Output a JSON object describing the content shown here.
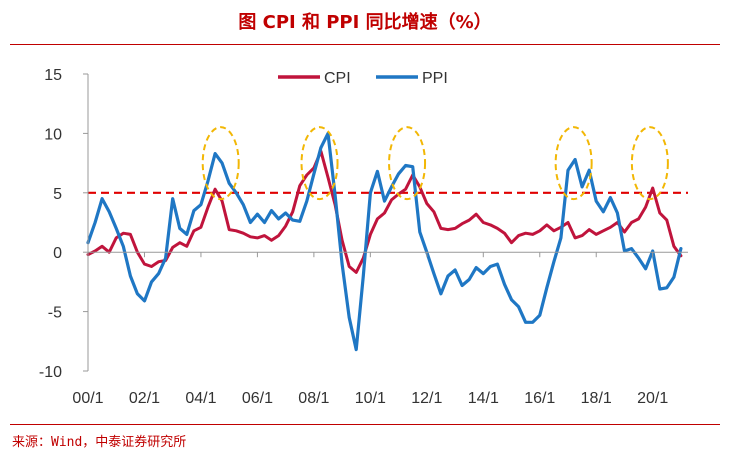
{
  "title": "图  CPI 和 PPI 同比增速（%）",
  "source": "来源：Wind，中泰证券研究所",
  "colors": {
    "cpi": "#C0143C",
    "ppi": "#1F77C4",
    "reference": "#E00000",
    "highlight": "#F2B705",
    "axis": "#999999"
  },
  "chart_data": {
    "type": "line",
    "title": "CPI 和 PPI 同比增速（%）",
    "xlabel": "",
    "ylabel": "",
    "xlim": [
      2000.0,
      2021.25
    ],
    "ylim": [
      -10,
      15
    ],
    "yticks": [
      -10,
      -5,
      0,
      5,
      10,
      15
    ],
    "xticks": [
      {
        "t": 2000,
        "label": "00/1"
      },
      {
        "t": 2002,
        "label": "02/1"
      },
      {
        "t": 2004,
        "label": "04/1"
      },
      {
        "t": 2006,
        "label": "06/1"
      },
      {
        "t": 2008,
        "label": "08/1"
      },
      {
        "t": 2010,
        "label": "10/1"
      },
      {
        "t": 2012,
        "label": "12/1"
      },
      {
        "t": 2014,
        "label": "14/1"
      },
      {
        "t": 2016,
        "label": "16/1"
      },
      {
        "t": 2018,
        "label": "18/1"
      },
      {
        "t": 2020,
        "label": "20/1"
      }
    ],
    "legend": [
      "CPI",
      "PPI"
    ],
    "legend_position": "top-center",
    "reference_line": {
      "y": 5,
      "style": "dashed"
    },
    "highlighted_episodes": [
      2004.7,
      2008.2,
      2011.3,
      2017.2,
      2019.9
    ],
    "series": [
      {
        "name": "CPI",
        "x": [
          2000.0,
          2000.25,
          2000.5,
          2000.75,
          2001.0,
          2001.25,
          2001.5,
          2001.75,
          2002.0,
          2002.25,
          2002.5,
          2002.75,
          2003.0,
          2003.25,
          2003.5,
          2003.75,
          2004.0,
          2004.25,
          2004.5,
          2004.75,
          2005.0,
          2005.25,
          2005.5,
          2005.75,
          2006.0,
          2006.25,
          2006.5,
          2006.75,
          2007.0,
          2007.25,
          2007.5,
          2007.75,
          2008.0,
          2008.25,
          2008.5,
          2008.75,
          2009.0,
          2009.25,
          2009.5,
          2009.75,
          2010.0,
          2010.25,
          2010.5,
          2010.75,
          2011.0,
          2011.25,
          2011.5,
          2011.75,
          2012.0,
          2012.25,
          2012.5,
          2012.75,
          2013.0,
          2013.25,
          2013.5,
          2013.75,
          2014.0,
          2014.25,
          2014.5,
          2014.75,
          2015.0,
          2015.25,
          2015.5,
          2015.75,
          2016.0,
          2016.25,
          2016.5,
          2016.75,
          2017.0,
          2017.25,
          2017.5,
          2017.75,
          2018.0,
          2018.25,
          2018.5,
          2018.75,
          2019.0,
          2019.25,
          2019.5,
          2019.75,
          2020.0,
          2020.25,
          2020.5,
          2020.75,
          2021.0
        ],
        "values": [
          -0.2,
          0.1,
          0.5,
          0.0,
          1.2,
          1.6,
          1.5,
          0.0,
          -1.0,
          -1.2,
          -0.8,
          -0.7,
          0.4,
          0.8,
          0.5,
          1.8,
          2.1,
          3.8,
          5.3,
          4.3,
          1.9,
          1.8,
          1.6,
          1.3,
          1.2,
          1.4,
          1.0,
          1.4,
          2.2,
          3.4,
          5.6,
          6.5,
          7.1,
          8.5,
          6.3,
          4.0,
          1.0,
          -1.2,
          -1.7,
          -0.5,
          1.5,
          2.8,
          3.3,
          4.4,
          4.9,
          5.3,
          6.5,
          5.5,
          4.1,
          3.4,
          2.0,
          1.9,
          2.0,
          2.4,
          2.7,
          3.2,
          2.5,
          2.3,
          2.0,
          1.6,
          0.8,
          1.4,
          1.6,
          1.5,
          1.8,
          2.3,
          1.8,
          2.1,
          2.5,
          1.2,
          1.4,
          1.9,
          1.5,
          1.8,
          2.1,
          2.5,
          1.7,
          2.5,
          2.8,
          3.8,
          5.4,
          3.3,
          2.7,
          0.5,
          -0.3
        ]
      },
      {
        "name": "PPI",
        "x": [
          2000.0,
          2000.25,
          2000.5,
          2000.75,
          2001.0,
          2001.25,
          2001.5,
          2001.75,
          2002.0,
          2002.25,
          2002.5,
          2002.75,
          2003.0,
          2003.25,
          2003.5,
          2003.75,
          2004.0,
          2004.25,
          2004.5,
          2004.75,
          2005.0,
          2005.25,
          2005.5,
          2005.75,
          2006.0,
          2006.25,
          2006.5,
          2006.75,
          2007.0,
          2007.25,
          2007.5,
          2007.75,
          2008.0,
          2008.25,
          2008.5,
          2008.75,
          2009.0,
          2009.25,
          2009.5,
          2009.75,
          2010.0,
          2010.25,
          2010.5,
          2010.75,
          2011.0,
          2011.25,
          2011.5,
          2011.75,
          2012.0,
          2012.25,
          2012.5,
          2012.75,
          2013.0,
          2013.25,
          2013.5,
          2013.75,
          2014.0,
          2014.25,
          2014.5,
          2014.75,
          2015.0,
          2015.25,
          2015.5,
          2015.75,
          2016.0,
          2016.25,
          2016.5,
          2016.75,
          2017.0,
          2017.25,
          2017.5,
          2017.75,
          2018.0,
          2018.25,
          2018.5,
          2018.75,
          2019.0,
          2019.25,
          2019.5,
          2019.75,
          2020.0,
          2020.25,
          2020.5,
          2020.75,
          2021.0
        ],
        "values": [
          0.8,
          2.5,
          4.5,
          3.4,
          2.0,
          0.5,
          -2.0,
          -3.5,
          -4.1,
          -2.5,
          -1.8,
          -0.5,
          4.5,
          2.0,
          1.5,
          3.5,
          4.0,
          6.0,
          8.3,
          7.5,
          5.8,
          5.0,
          4.0,
          2.5,
          3.2,
          2.5,
          3.5,
          2.8,
          3.3,
          2.7,
          2.6,
          4.3,
          6.6,
          8.8,
          10.0,
          4.8,
          -1.0,
          -5.5,
          -8.2,
          -2.0,
          5.0,
          6.8,
          4.3,
          5.5,
          6.6,
          7.3,
          7.2,
          1.7,
          0.0,
          -1.8,
          -3.5,
          -2.0,
          -1.5,
          -2.8,
          -2.3,
          -1.3,
          -1.8,
          -1.2,
          -1.0,
          -2.7,
          -4.0,
          -4.6,
          -5.9,
          -5.9,
          -5.3,
          -3.0,
          -0.8,
          1.2,
          6.9,
          7.8,
          5.5,
          6.9,
          4.3,
          3.4,
          4.6,
          3.3,
          0.1,
          0.3,
          -0.5,
          -1.4,
          0.1,
          -3.1,
          -3.0,
          -2.1,
          0.3
        ]
      }
    ]
  }
}
